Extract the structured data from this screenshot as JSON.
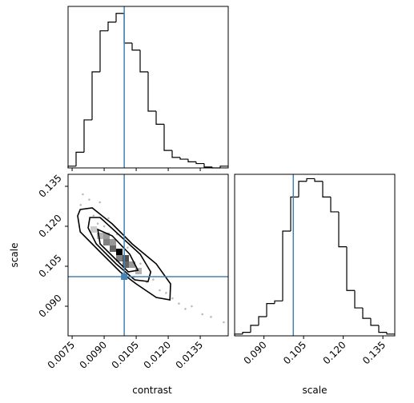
{
  "chart_data": {
    "type": "corner",
    "x_labels": [
      "contrast",
      "scale"
    ],
    "y_label": "scale",
    "truths": [
      0.00994,
      0.1011
    ],
    "truth_color": "#4682b4",
    "xlim_contrast": [
      0.00731,
      0.01481
    ],
    "xticks_contrast": [
      0.0075,
      {
        "value": 0.009,
        "label": "0.0090"
      },
      0.0105,
      {
        "value": 0.012,
        "label": "0.0120"
      },
      0.0135
    ],
    "lim_scale": [
      0.0789,
      0.1395
    ],
    "ticks_scale": [
      {
        "value": 0.09,
        "label": "0.090"
      },
      0.105,
      {
        "value": 0.12,
        "label": "0.120"
      },
      0.135
    ],
    "hist_ylim": [
      0,
      185
    ],
    "hist_contrast": {
      "bins": [
        0.00731,
        0.007685,
        0.00806,
        0.008435,
        0.00881,
        0.009185,
        0.00956,
        0.009935,
        0.01031,
        0.010685,
        0.01106,
        0.011435,
        0.01181,
        0.012185,
        0.01256,
        0.012935,
        0.01331,
        0.013685,
        0.01406,
        0.014435,
        0.01481
      ],
      "counts": [
        2,
        18,
        55,
        110,
        157,
        167,
        177,
        143,
        135,
        110,
        65,
        50,
        20,
        12,
        10,
        7,
        5,
        1,
        0,
        2
      ]
    },
    "hist_scale": {
      "bins": [
        0.0789,
        0.08193,
        0.08496,
        0.08799,
        0.09102,
        0.09405,
        0.09708,
        0.10011,
        0.10314,
        0.10617,
        0.1092,
        0.11223,
        0.11526,
        0.11829,
        0.12132,
        0.12435,
        0.12738,
        0.13041,
        0.13344,
        0.13647,
        0.1395
      ],
      "counts": [
        2,
        4,
        12,
        22,
        37,
        40,
        120,
        159,
        177,
        180,
        177,
        159,
        142,
        102,
        52,
        32,
        20,
        12,
        4,
        2
      ]
    },
    "scatter": {
      "x": [
        0.008,
        0.0083,
        0.0085,
        0.0088,
        0.009,
        0.0092,
        0.0094,
        0.0096,
        0.0099,
        0.0101,
        0.0104,
        0.0107,
        0.011,
        0.0113,
        0.0116,
        0.0119,
        0.0122,
        0.0125,
        0.0128,
        0.0131,
        0.0136,
        0.014,
        0.0146,
        0.0079,
        0.0087
      ],
      "y": [
        0.132,
        0.13,
        0.124,
        0.129,
        0.12,
        0.123,
        0.115,
        0.117,
        0.109,
        0.112,
        0.101,
        0.106,
        0.099,
        0.1,
        0.096,
        0.095,
        0.093,
        0.091,
        0.089,
        0.09,
        0.087,
        0.086,
        0.084,
        0.128,
        0.121
      ]
    },
    "hist2d": {
      "x": [
        0.00881,
        0.00911,
        0.00941,
        0.00941,
        0.00971,
        0.01001,
        0.00971,
        0.01031,
        0.01001,
        0.00911,
        0.01061,
        0.00851
      ],
      "y": [
        0.1164,
        0.114,
        0.114,
        0.1116,
        0.1104,
        0.108,
        0.108,
        0.1056,
        0.1056,
        0.1164,
        0.1032,
        0.1188
      ],
      "counts": [
        3,
        5,
        4,
        6,
        10,
        7,
        5,
        4,
        6,
        4,
        3,
        2
      ]
    },
    "contours": [
      {
        "x": [
          0.00788,
          0.00844,
          0.00938,
          0.01031,
          0.01144,
          0.01211,
          0.01208,
          0.01144,
          0.0105,
          0.00975,
          0.00881,
          0.00788,
          0.00776
        ],
        "y": [
          0.1263,
          0.1269,
          0.1209,
          0.1134,
          0.1059,
          0.0984,
          0.0924,
          0.0933,
          0.0984,
          0.1029,
          0.1104,
          0.1179,
          0.1239
        ]
      },
      {
        "x": [
          0.00833,
          0.00881,
          0.00975,
          0.01069,
          0.01118,
          0.01106,
          0.01043,
          0.00956,
          0.00863,
          0.00825
        ],
        "y": [
          0.1233,
          0.1233,
          0.1164,
          0.1095,
          0.1029,
          0.0993,
          0.0999,
          0.1059,
          0.1134,
          0.1194
        ]
      },
      {
        "x": [
          0.0087,
          0.00938,
          0.0102,
          0.01058,
          0.01013,
          0.00938,
          0.00881
        ],
        "y": [
          0.1188,
          0.1164,
          0.1095,
          0.1035,
          0.1029,
          0.1089,
          0.1134
        ]
      }
    ]
  }
}
